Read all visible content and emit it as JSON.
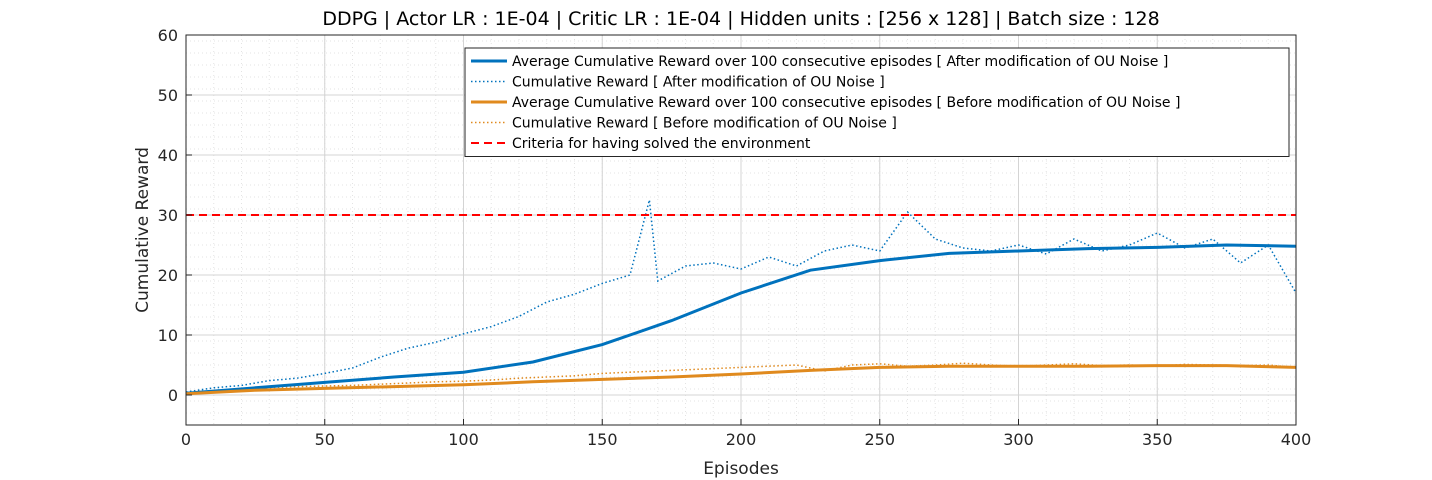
{
  "chart_data": {
    "type": "line",
    "title": "DDPG | Actor LR : 1E-04 | Critic LR : 1E-04 | Hidden units : [256 x 128] | Batch size : 128",
    "xlabel": "Episodes",
    "ylabel": "Cumulative Reward",
    "xlim": [
      0,
      400
    ],
    "ylim": [
      -5,
      60
    ],
    "xticks": [
      0,
      50,
      100,
      150,
      200,
      250,
      300,
      350,
      400
    ],
    "yticks": [
      0,
      10,
      20,
      30,
      40,
      50,
      60
    ],
    "grid": true,
    "minor_grid": true,
    "legend_position": "top-right",
    "colors": {
      "after": "#0072BD",
      "before": "#D95319",
      "before_display": "#E08A1E",
      "criteria": "#FF0000"
    },
    "series": [
      {
        "name": "Average Cumulative Reward over 100 consecutive episodes [ After modification of OU Noise ]",
        "style": "solid",
        "color": "after",
        "x": [
          0,
          25,
          50,
          75,
          100,
          125,
          150,
          175,
          200,
          225,
          250,
          275,
          300,
          325,
          350,
          375,
          400
        ],
        "y": [
          0.3,
          1.2,
          2.1,
          3.0,
          3.8,
          5.5,
          8.4,
          12.4,
          17.0,
          20.8,
          22.4,
          23.6,
          24.0,
          24.4,
          24.6,
          25.0,
          24.8
        ]
      },
      {
        "name": "Cumulative Reward [ After modification of OU Noise ]",
        "style": "dotted",
        "color": "after",
        "x": [
          0,
          10,
          20,
          30,
          40,
          50,
          60,
          70,
          80,
          90,
          100,
          110,
          120,
          130,
          140,
          150,
          160,
          167,
          170,
          180,
          190,
          200,
          210,
          220,
          230,
          240,
          250,
          260,
          270,
          280,
          290,
          300,
          310,
          320,
          330,
          340,
          350,
          360,
          370,
          380,
          390,
          400
        ],
        "y": [
          0.5,
          1.2,
          1.6,
          2.4,
          2.8,
          3.6,
          4.5,
          6.3,
          7.8,
          8.8,
          10.2,
          11.4,
          13.1,
          15.5,
          16.8,
          18.6,
          20.0,
          32.5,
          19.0,
          21.5,
          22.0,
          21.0,
          23.0,
          21.5,
          24.0,
          25.0,
          24.0,
          30.5,
          26.0,
          24.5,
          24.0,
          25.0,
          23.5,
          26.0,
          24.0,
          25.0,
          27.0,
          24.5,
          26.0,
          22.0,
          25.0,
          17.0
        ]
      },
      {
        "name": "Average Cumulative Reward over 100 consecutive episodes [ Before modification of OU Noise ]",
        "style": "solid",
        "color": "before",
        "x": [
          0,
          25,
          50,
          75,
          100,
          125,
          150,
          175,
          200,
          225,
          250,
          275,
          300,
          325,
          350,
          375,
          400
        ],
        "y": [
          0.2,
          0.8,
          1.1,
          1.4,
          1.7,
          2.2,
          2.6,
          3.0,
          3.5,
          4.1,
          4.6,
          4.8,
          4.8,
          4.8,
          4.9,
          4.9,
          4.6
        ]
      },
      {
        "name": "Cumulative Reward [ Before modification of OU Noise ]",
        "style": "dotted",
        "color": "before",
        "x": [
          0,
          10,
          20,
          30,
          40,
          50,
          60,
          70,
          80,
          90,
          100,
          110,
          120,
          130,
          140,
          150,
          160,
          170,
          180,
          190,
          200,
          210,
          220,
          230,
          240,
          250,
          260,
          270,
          280,
          290,
          300,
          310,
          320,
          330,
          340,
          350,
          360,
          370,
          380,
          390,
          400
        ],
        "y": [
          0.3,
          0.6,
          1.0,
          1.2,
          1.4,
          1.5,
          1.6,
          1.8,
          2.0,
          2.2,
          2.3,
          2.5,
          2.8,
          3.0,
          3.2,
          3.6,
          3.8,
          4.0,
          4.2,
          4.4,
          4.6,
          4.8,
          5.0,
          4.0,
          5.0,
          5.2,
          4.8,
          5.0,
          5.3,
          5.0,
          4.8,
          5.0,
          5.2,
          4.9,
          5.0,
          4.8,
          5.1,
          5.0,
          4.9,
          5.0,
          4.6
        ]
      },
      {
        "name": "Criteria for having solved the environment",
        "style": "dashed",
        "color": "criteria",
        "x": [
          0,
          400
        ],
        "y": [
          30,
          30
        ]
      }
    ]
  }
}
